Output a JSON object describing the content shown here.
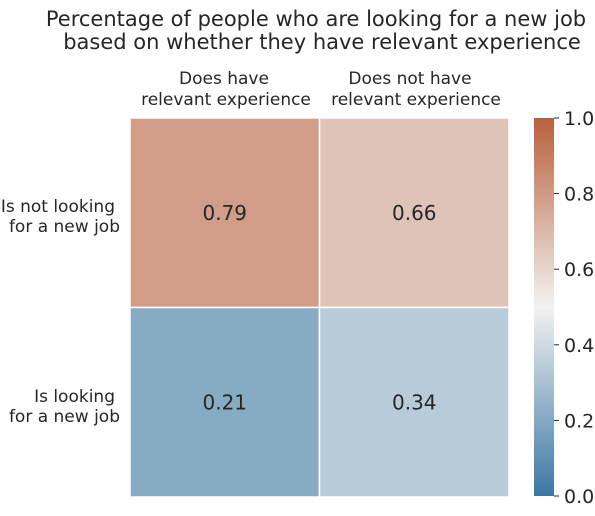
{
  "chart_data": {
    "type": "heatmap",
    "title_lines": [
      "Percentage of people who are looking for a new job",
      "based on whether they have relevant experience"
    ],
    "columns": [
      {
        "lines": [
          "Does have",
          "relevant experience"
        ]
      },
      {
        "lines": [
          "Does not have",
          "relevant experience"
        ]
      }
    ],
    "rows": [
      {
        "lines": [
          "Is not looking",
          "for a new job"
        ]
      },
      {
        "lines": [
          "Is looking",
          "for a new job"
        ]
      }
    ],
    "values": [
      [
        0.79,
        0.66
      ],
      [
        0.21,
        0.34
      ]
    ],
    "value_labels": [
      [
        "0.79",
        "0.66"
      ],
      [
        "0.21",
        "0.34"
      ]
    ],
    "colorbar": {
      "range": [
        0.0,
        1.0
      ],
      "ticks": [
        "0.0",
        "0.2",
        "0.4",
        "0.6",
        "0.8",
        "1.0"
      ],
      "colors": {
        "low": "#3b77a3",
        "mid": "#f2f2f2",
        "high": "#b8603d"
      }
    },
    "legend": "right colorbar"
  }
}
